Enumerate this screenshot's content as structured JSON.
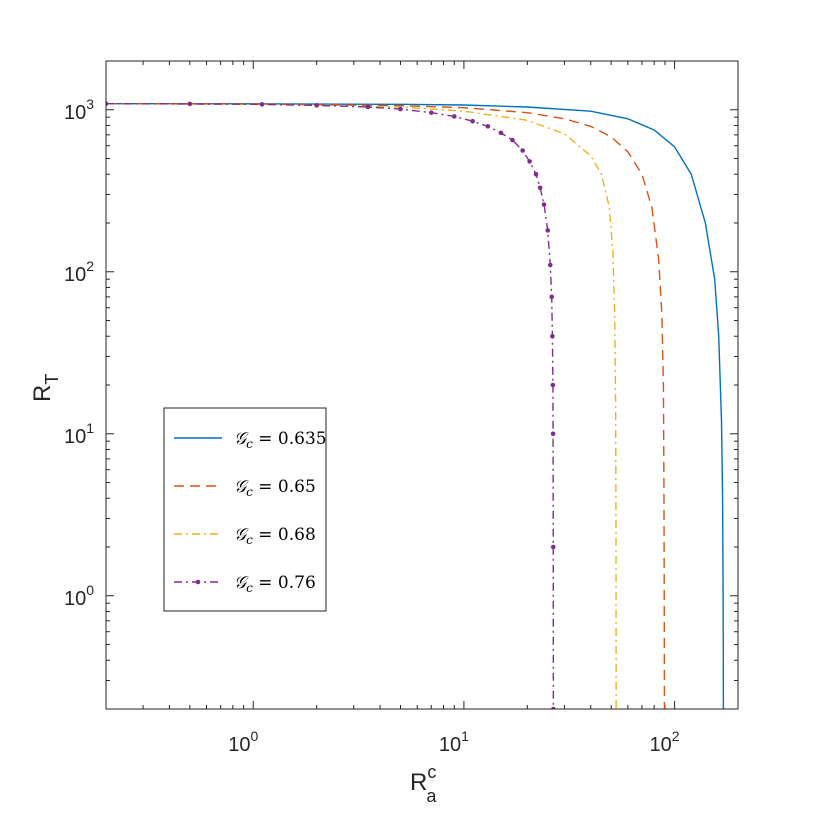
{
  "chart_data": {
    "type": "line",
    "x_scale": "log",
    "y_scale": "log",
    "xlim": [
      0.2,
      200
    ],
    "ylim": [
      0.2,
      2000
    ],
    "xlabel": {
      "main": "R",
      "sup": "c",
      "sub": "a"
    },
    "ylabel": {
      "main": "R",
      "sub": "T"
    },
    "x_ticks": [
      {
        "value": 1,
        "base": "10",
        "exp": "0"
      },
      {
        "value": 10,
        "base": "10",
        "exp": "1"
      },
      {
        "value": 100,
        "base": "10",
        "exp": "2"
      }
    ],
    "y_ticks": [
      {
        "value": 1,
        "base": "10",
        "exp": "0"
      },
      {
        "value": 10,
        "base": "10",
        "exp": "1"
      },
      {
        "value": 100,
        "base": "10",
        "exp": "2"
      },
      {
        "value": 1000,
        "base": "10",
        "exp": "3"
      }
    ],
    "grid": false,
    "legend_position": "left-center",
    "series": [
      {
        "name": "0.635",
        "color": "#0072BD",
        "style": "solid",
        "marker": "none",
        "points": [
          [
            0.2,
            1090
          ],
          [
            1,
            1088
          ],
          [
            5,
            1080
          ],
          [
            10,
            1070
          ],
          [
            20,
            1040
          ],
          [
            40,
            980
          ],
          [
            60,
            880
          ],
          [
            80,
            750
          ],
          [
            100,
            590
          ],
          [
            120,
            400
          ],
          [
            140,
            200
          ],
          [
            155,
            90
          ],
          [
            162,
            40
          ],
          [
            167,
            12
          ],
          [
            169,
            4
          ],
          [
            170,
            1
          ],
          [
            170.5,
            0.2
          ]
        ]
      },
      {
        "name": "0.65",
        "color": "#D95319",
        "style": "dashed",
        "marker": "none",
        "points": [
          [
            0.2,
            1090
          ],
          [
            1,
            1085
          ],
          [
            5,
            1060
          ],
          [
            10,
            1030
          ],
          [
            20,
            960
          ],
          [
            30,
            880
          ],
          [
            40,
            790
          ],
          [
            50,
            680
          ],
          [
            60,
            550
          ],
          [
            70,
            400
          ],
          [
            78,
            250
          ],
          [
            84,
            120
          ],
          [
            87,
            55
          ],
          [
            88.5,
            20
          ],
          [
            89,
            5
          ],
          [
            89.3,
            1
          ],
          [
            89.5,
            0.2
          ]
        ]
      },
      {
        "name": "0.68",
        "color": "#EDB120",
        "style": "dashdot",
        "marker": "none",
        "points": [
          [
            0.2,
            1090
          ],
          [
            1,
            1080
          ],
          [
            5,
            1040
          ],
          [
            10,
            980
          ],
          [
            20,
            860
          ],
          [
            30,
            710
          ],
          [
            40,
            520
          ],
          [
            45,
            400
          ],
          [
            49,
            250
          ],
          [
            51,
            130
          ],
          [
            52,
            50
          ],
          [
            52.5,
            15
          ],
          [
            52.7,
            3
          ],
          [
            52.8,
            0.2
          ]
        ]
      },
      {
        "name": "0.76",
        "color": "#7E2F8E",
        "style": "dashdot",
        "marker": "dot",
        "points": [
          [
            0.2,
            1090
          ],
          [
            0.5,
            1087
          ],
          [
            1.1,
            1080
          ],
          [
            2,
            1065
          ],
          [
            3.5,
            1040
          ],
          [
            5,
            1010
          ],
          [
            7,
            960
          ],
          [
            9,
            910
          ],
          [
            11,
            850
          ],
          [
            13,
            790
          ],
          [
            15,
            720
          ],
          [
            17,
            650
          ],
          [
            19,
            560
          ],
          [
            20.5,
            480
          ],
          [
            22,
            400
          ],
          [
            23,
            330
          ],
          [
            24,
            260
          ],
          [
            25,
            180
          ],
          [
            25.7,
            110
          ],
          [
            26.1,
            70
          ],
          [
            26.3,
            40
          ],
          [
            26.45,
            20
          ],
          [
            26.5,
            10
          ],
          [
            26.55,
            2
          ],
          [
            26.58,
            0.2
          ]
        ]
      }
    ]
  },
  "legend": {
    "symbol": "𝒢",
    "subscript": "c",
    "equals": " = ",
    "values": [
      "0.635",
      "0.65",
      "0.68",
      "0.76"
    ]
  }
}
